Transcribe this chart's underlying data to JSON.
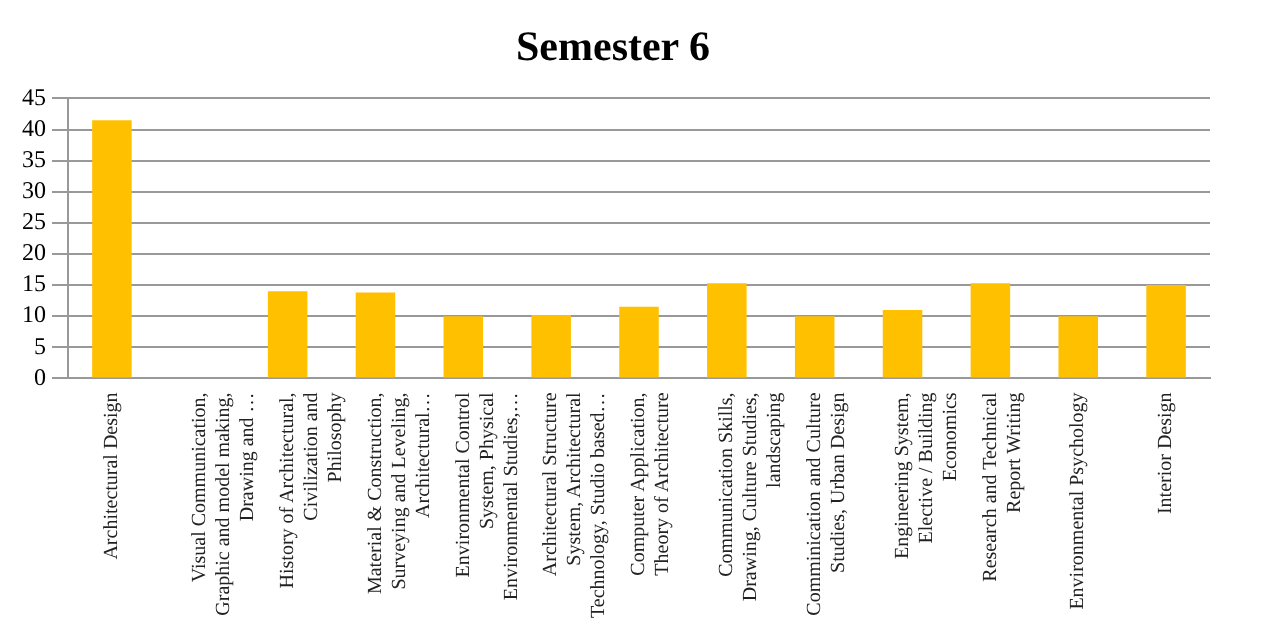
{
  "chart_data": {
    "type": "bar",
    "title": "Semester 6",
    "categories": [
      "Architectural Design",
      "Visual Communication, Graphic and model making, Drawing and …",
      "History of Architectural, Civilization and Philosophy",
      "Material & Construction, Surveying and Leveling, Architectural…",
      "Environmental Control System, Physical Environmental Studies,…",
      "Architectural Structure System, Architectural Technology, Studio based…",
      "Computer Application, Theory of Architecture",
      "Communication Skills, Drawing, Culture Studies, landscaping",
      "Comminication and Culture Studies, Urban Design",
      "Engineering System, Elective / Building Economics",
      "Research and Technical Report Writing",
      "Environmental Psychology",
      "Interior Design"
    ],
    "values": [
      41.5,
      0,
      14,
      13.8,
      10,
      10.2,
      11.5,
      15.3,
      10,
      11,
      15.3,
      10,
      15
    ],
    "color": "#ffc000",
    "ylim": [
      0,
      45
    ],
    "yticks": [
      0,
      5,
      10,
      15,
      20,
      25,
      30,
      35,
      40,
      45
    ],
    "grid": "y"
  }
}
